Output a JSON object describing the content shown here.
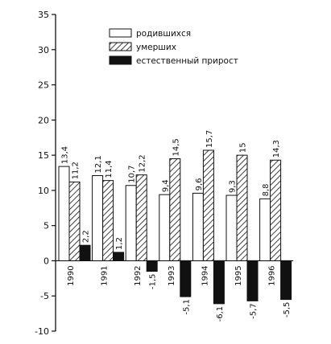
{
  "chart_data": {
    "type": "bar",
    "categories": [
      "1990",
      "1991",
      "1992",
      "1993",
      "1994",
      "1995",
      "1996"
    ],
    "series": [
      {
        "name": "родившихся",
        "values": [
          13.4,
          12.1,
          10.7,
          9.4,
          9.6,
          9.3,
          8.8
        ],
        "value_labels": [
          "13,4",
          "12,1",
          "10,7",
          "9,4",
          "9,6",
          "9,3",
          "8,8"
        ],
        "fill": "white"
      },
      {
        "name": "умерших",
        "values": [
          11.2,
          11.4,
          12.2,
          14.5,
          15.7,
          15.0,
          14.3
        ],
        "value_labels": [
          "11,2",
          "11,4",
          "12,2",
          "14,5",
          "15,7",
          "15",
          "14,3"
        ],
        "fill": "hatch"
      },
      {
        "name": "естественный прирост",
        "values": [
          2.2,
          1.2,
          -1.5,
          -5.1,
          -6.1,
          -5.7,
          -5.5
        ],
        "value_labels": [
          "2,2",
          "1,2",
          "-1,5",
          "-5,1",
          "-6,1",
          "-5,7",
          "-5,5"
        ],
        "fill": "black"
      }
    ],
    "ylim": [
      -10,
      35
    ],
    "yticks": [
      -10,
      -5,
      0,
      5,
      10,
      15,
      20,
      25,
      30,
      35
    ],
    "grid": false,
    "legend_position": "top-center",
    "colors": {
      "bar_outline": "#111111",
      "solid_fill": "#111111",
      "hatch_color": "#111111"
    }
  }
}
